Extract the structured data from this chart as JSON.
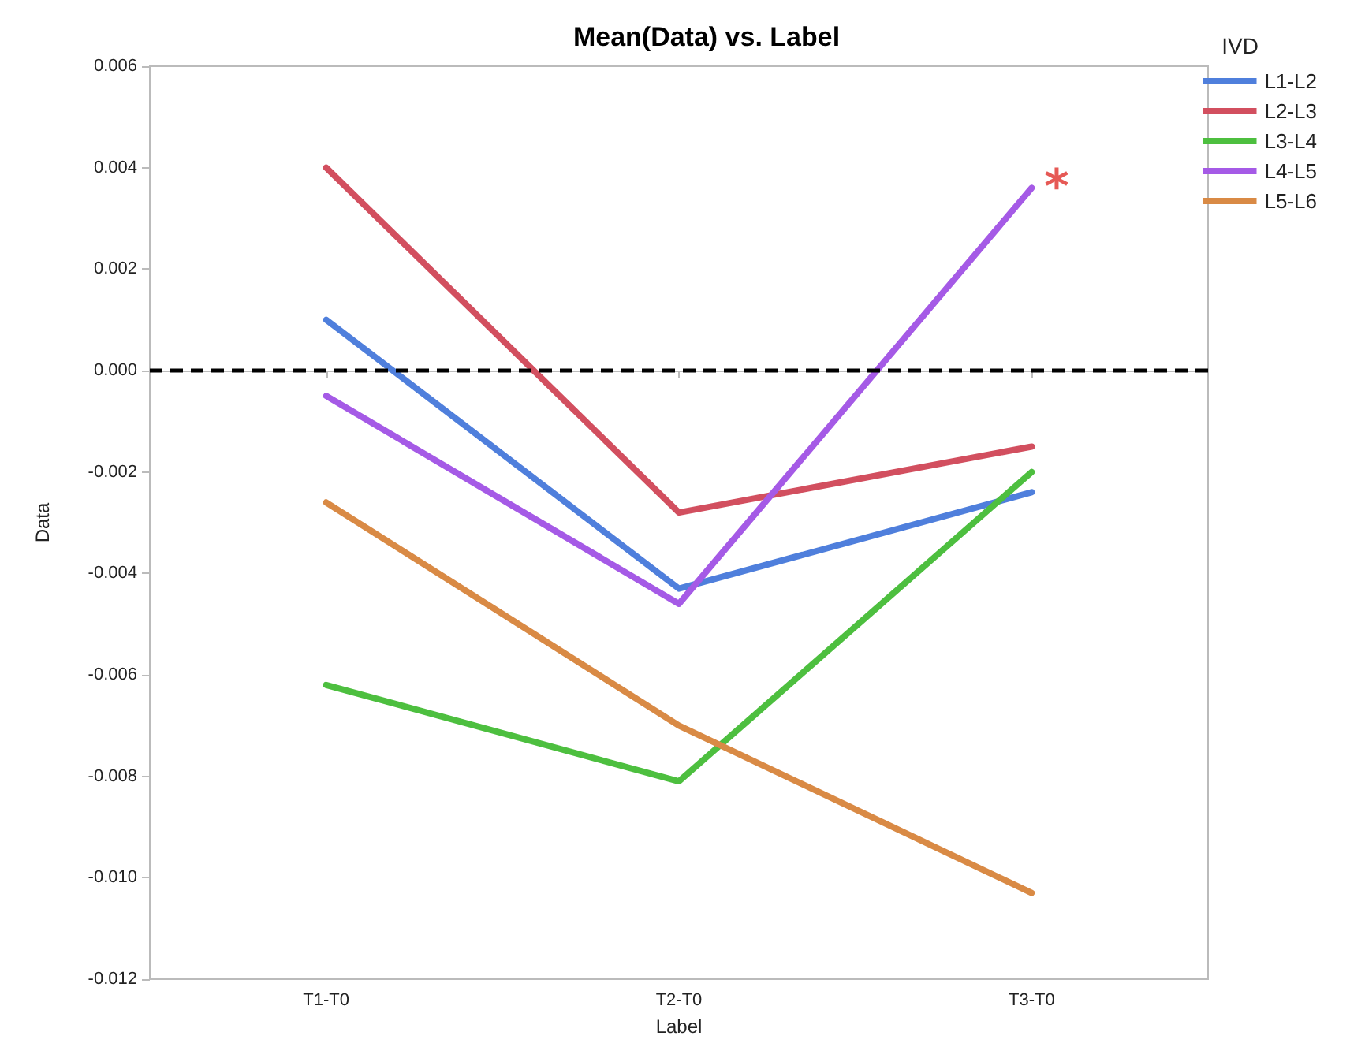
{
  "chart_data": {
    "type": "line",
    "title": "Mean(Data) vs. Label",
    "xlabel": "Label",
    "ylabel": "Data",
    "legend_title": "IVD",
    "legend": "top right",
    "grid": false,
    "marker": "none",
    "line_style": "solid",
    "categories": [
      "T1-T0",
      "T2-T0",
      "T3-T0"
    ],
    "series": [
      {
        "name": "L1-L2",
        "color": "#4f7fdc",
        "values": [
          0.001,
          -0.0043,
          -0.0024
        ]
      },
      {
        "name": "L2-L3",
        "color": "#d24f5f",
        "values": [
          0.004,
          -0.0028,
          -0.0015
        ]
      },
      {
        "name": "L3-L4",
        "color": "#4dbf3f",
        "values": [
          -0.0062,
          -0.0081,
          -0.002
        ]
      },
      {
        "name": "L4-L5",
        "color": "#a55ae6",
        "values": [
          -0.0005,
          -0.0046,
          0.0036
        ]
      },
      {
        "name": "L5-L6",
        "color": "#d98a45",
        "values": [
          -0.0026,
          -0.007,
          -0.0103
        ]
      }
    ],
    "ylim": [
      -0.012,
      0.006
    ],
    "yticks": [
      {
        "value": -0.012,
        "label": "-0.012"
      },
      {
        "value": -0.01,
        "label": "-0.010"
      },
      {
        "value": -0.008,
        "label": "-0.008"
      },
      {
        "value": -0.006,
        "label": "-0.006"
      },
      {
        "value": -0.004,
        "label": "-0.004"
      },
      {
        "value": -0.002,
        "label": "-0.002"
      },
      {
        "value": 0,
        "label": "0.000"
      },
      {
        "value": 0.002,
        "label": "0.002"
      },
      {
        "value": 0.004,
        "label": "0.004"
      },
      {
        "value": 0.006,
        "label": "0.006"
      }
    ],
    "ref_lines": [
      {
        "axis": "y",
        "value": 0,
        "label": null,
        "color": "#000000",
        "line_style": "dashed"
      }
    ],
    "annotations": [
      {
        "text": "*",
        "x": "T3-T0",
        "y": 0.0036
      }
    ]
  }
}
